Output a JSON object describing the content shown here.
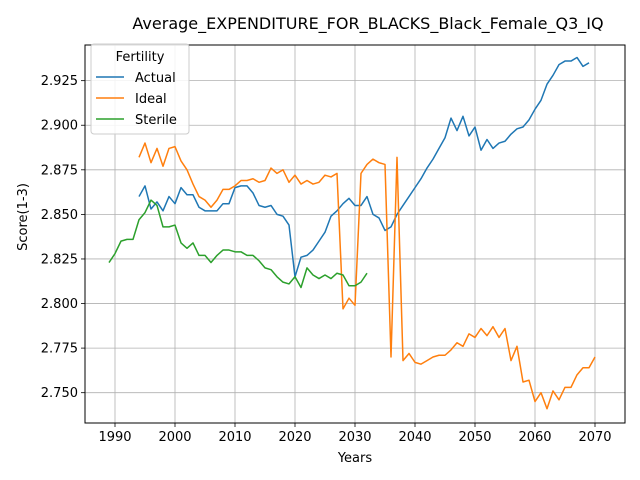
{
  "chart_data": {
    "type": "line",
    "title": "Average_EXPENDITURE_FOR_BLACKS_Black_Female_Q3_IQ",
    "xlabel": "Years",
    "ylabel": "Score(1-3)",
    "xlim": [
      1985,
      2075
    ],
    "ylim": [
      2.733,
      2.945
    ],
    "xticks": [
      1990,
      2000,
      2010,
      2020,
      2030,
      2040,
      2050,
      2060,
      2070
    ],
    "yticks": [
      2.75,
      2.775,
      2.8,
      2.825,
      2.85,
      2.875,
      2.9,
      2.925
    ],
    "xtick_labels": [
      "1990",
      "2000",
      "2010",
      "2020",
      "2030",
      "2040",
      "2050",
      "2060",
      "2070"
    ],
    "ytick_labels": [
      "2.750",
      "2.775",
      "2.800",
      "2.825",
      "2.850",
      "2.875",
      "2.900",
      "2.925"
    ],
    "grid": true,
    "legend": {
      "title": "Fertility",
      "placement": "upper-left"
    },
    "series": [
      {
        "name": "Actual",
        "color": "#1f77b4",
        "points": [
          [
            1994,
            2.86
          ],
          [
            1995,
            2.866
          ],
          [
            1996,
            2.853
          ],
          [
            1997,
            2.857
          ],
          [
            1998,
            2.852
          ],
          [
            1999,
            2.86
          ],
          [
            2000,
            2.856
          ],
          [
            2001,
            2.865
          ],
          [
            2002,
            2.861
          ],
          [
            2003,
            2.861
          ],
          [
            2004,
            2.854
          ],
          [
            2005,
            2.852
          ],
          [
            2006,
            2.852
          ],
          [
            2007,
            2.852
          ],
          [
            2008,
            2.856
          ],
          [
            2009,
            2.856
          ],
          [
            2010,
            2.865
          ],
          [
            2011,
            2.866
          ],
          [
            2012,
            2.866
          ],
          [
            2013,
            2.862
          ],
          [
            2014,
            2.855
          ],
          [
            2015,
            2.854
          ],
          [
            2016,
            2.855
          ],
          [
            2017,
            2.85
          ],
          [
            2018,
            2.849
          ],
          [
            2019,
            2.844
          ],
          [
            2020,
            2.815
          ],
          [
            2021,
            2.826
          ],
          [
            2022,
            2.827
          ],
          [
            2023,
            2.83
          ],
          [
            2024,
            2.835
          ],
          [
            2025,
            2.84
          ],
          [
            2026,
            2.849
          ],
          [
            2027,
            2.852
          ],
          [
            2028,
            2.856
          ],
          [
            2029,
            2.859
          ],
          [
            2030,
            2.855
          ],
          [
            2031,
            2.855
          ],
          [
            2032,
            2.86
          ],
          [
            2033,
            2.85
          ],
          [
            2034,
            2.848
          ],
          [
            2035,
            2.841
          ],
          [
            2036,
            2.843
          ],
          [
            2037,
            2.85
          ],
          [
            2038,
            2.855
          ],
          [
            2039,
            2.86
          ],
          [
            2040,
            2.865
          ],
          [
            2041,
            2.87
          ],
          [
            2042,
            2.876
          ],
          [
            2043,
            2.881
          ],
          [
            2044,
            2.887
          ],
          [
            2045,
            2.893
          ],
          [
            2046,
            2.904
          ],
          [
            2047,
            2.897
          ],
          [
            2048,
            2.905
          ],
          [
            2049,
            2.894
          ],
          [
            2050,
            2.899
          ],
          [
            2051,
            2.886
          ],
          [
            2052,
            2.892
          ],
          [
            2053,
            2.887
          ],
          [
            2054,
            2.89
          ],
          [
            2055,
            2.891
          ],
          [
            2056,
            2.895
          ],
          [
            2057,
            2.898
          ],
          [
            2058,
            2.899
          ],
          [
            2059,
            2.903
          ],
          [
            2060,
            2.909
          ],
          [
            2061,
            2.914
          ],
          [
            2062,
            2.923
          ],
          [
            2063,
            2.928
          ],
          [
            2064,
            2.934
          ],
          [
            2065,
            2.936
          ],
          [
            2066,
            2.936
          ],
          [
            2067,
            2.938
          ],
          [
            2068,
            2.933
          ],
          [
            2069,
            2.935
          ]
        ]
      },
      {
        "name": "Ideal",
        "color": "#ff7f0e",
        "points": [
          [
            1994,
            2.882
          ],
          [
            1995,
            2.89
          ],
          [
            1996,
            2.879
          ],
          [
            1997,
            2.887
          ],
          [
            1998,
            2.877
          ],
          [
            1999,
            2.887
          ],
          [
            2000,
            2.888
          ],
          [
            2001,
            2.88
          ],
          [
            2002,
            2.875
          ],
          [
            2003,
            2.867
          ],
          [
            2004,
            2.86
          ],
          [
            2005,
            2.858
          ],
          [
            2006,
            2.854
          ],
          [
            2007,
            2.858
          ],
          [
            2008,
            2.864
          ],
          [
            2009,
            2.864
          ],
          [
            2010,
            2.866
          ],
          [
            2011,
            2.869
          ],
          [
            2012,
            2.869
          ],
          [
            2013,
            2.87
          ],
          [
            2014,
            2.868
          ],
          [
            2015,
            2.869
          ],
          [
            2016,
            2.876
          ],
          [
            2017,
            2.873
          ],
          [
            2018,
            2.875
          ],
          [
            2019,
            2.868
          ],
          [
            2020,
            2.872
          ],
          [
            2021,
            2.867
          ],
          [
            2022,
            2.869
          ],
          [
            2023,
            2.867
          ],
          [
            2024,
            2.868
          ],
          [
            2025,
            2.872
          ],
          [
            2026,
            2.871
          ],
          [
            2027,
            2.873
          ],
          [
            2028,
            2.797
          ],
          [
            2029,
            2.803
          ],
          [
            2030,
            2.799
          ],
          [
            2031,
            2.873
          ],
          [
            2032,
            2.878
          ],
          [
            2033,
            2.881
          ],
          [
            2034,
            2.879
          ],
          [
            2035,
            2.878
          ],
          [
            2036,
            2.77
          ],
          [
            2037,
            2.882
          ],
          [
            2038,
            2.768
          ],
          [
            2039,
            2.772
          ],
          [
            2040,
            2.767
          ],
          [
            2041,
            2.766
          ],
          [
            2042,
            2.768
          ],
          [
            2043,
            2.77
          ],
          [
            2044,
            2.771
          ],
          [
            2045,
            2.771
          ],
          [
            2046,
            2.774
          ],
          [
            2047,
            2.778
          ],
          [
            2048,
            2.776
          ],
          [
            2049,
            2.783
          ],
          [
            2050,
            2.781
          ],
          [
            2051,
            2.786
          ],
          [
            2052,
            2.782
          ],
          [
            2053,
            2.787
          ],
          [
            2054,
            2.781
          ],
          [
            2055,
            2.786
          ],
          [
            2056,
            2.768
          ],
          [
            2057,
            2.776
          ],
          [
            2058,
            2.756
          ],
          [
            2059,
            2.757
          ],
          [
            2060,
            2.745
          ],
          [
            2061,
            2.75
          ],
          [
            2062,
            2.741
          ],
          [
            2063,
            2.751
          ],
          [
            2064,
            2.746
          ],
          [
            2065,
            2.753
          ],
          [
            2066,
            2.753
          ],
          [
            2067,
            2.76
          ],
          [
            2068,
            2.764
          ],
          [
            2069,
            2.764
          ],
          [
            2070,
            2.77
          ]
        ]
      },
      {
        "name": "Sterile",
        "color": "#2ca02c",
        "points": [
          [
            1989,
            2.823
          ],
          [
            1990,
            2.828
          ],
          [
            1991,
            2.835
          ],
          [
            1992,
            2.836
          ],
          [
            1993,
            2.836
          ],
          [
            1994,
            2.847
          ],
          [
            1995,
            2.851
          ],
          [
            1996,
            2.858
          ],
          [
            1997,
            2.855
          ],
          [
            1998,
            2.843
          ],
          [
            1999,
            2.843
          ],
          [
            2000,
            2.844
          ],
          [
            2001,
            2.834
          ],
          [
            2002,
            2.831
          ],
          [
            2003,
            2.834
          ],
          [
            2004,
            2.827
          ],
          [
            2005,
            2.827
          ],
          [
            2006,
            2.823
          ],
          [
            2007,
            2.827
          ],
          [
            2008,
            2.83
          ],
          [
            2009,
            2.83
          ],
          [
            2010,
            2.829
          ],
          [
            2011,
            2.829
          ],
          [
            2012,
            2.827
          ],
          [
            2013,
            2.827
          ],
          [
            2014,
            2.824
          ],
          [
            2015,
            2.82
          ],
          [
            2016,
            2.819
          ],
          [
            2017,
            2.815
          ],
          [
            2018,
            2.812
          ],
          [
            2019,
            2.811
          ],
          [
            2020,
            2.815
          ],
          [
            2021,
            2.809
          ],
          [
            2022,
            2.82
          ],
          [
            2023,
            2.816
          ],
          [
            2024,
            2.814
          ],
          [
            2025,
            2.816
          ],
          [
            2026,
            2.814
          ],
          [
            2027,
            2.817
          ],
          [
            2028,
            2.816
          ],
          [
            2029,
            2.81
          ],
          [
            2030,
            2.81
          ],
          [
            2031,
            2.812
          ],
          [
            2032,
            2.817
          ]
        ]
      }
    ]
  }
}
